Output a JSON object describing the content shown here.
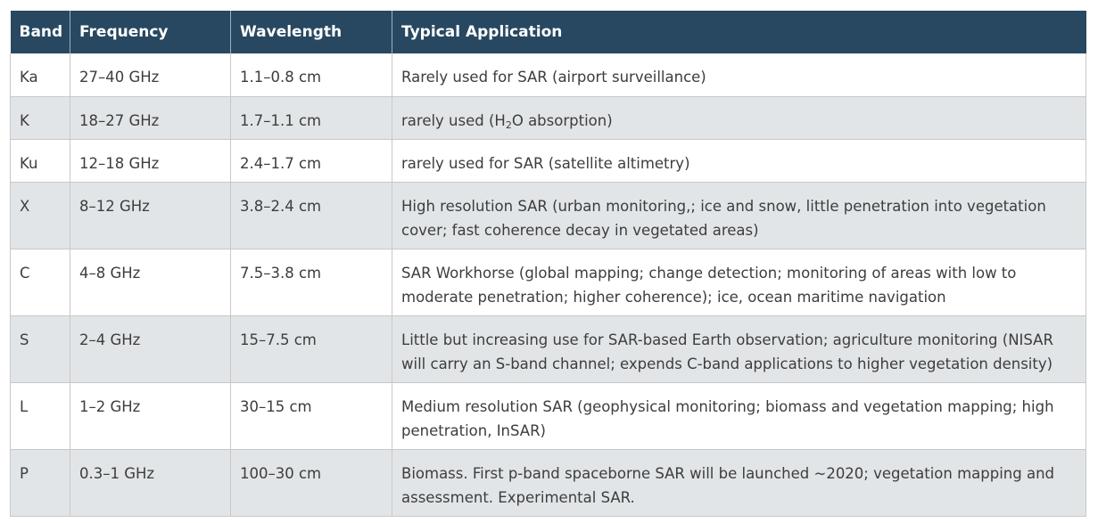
{
  "table": {
    "headers": [
      "Band",
      "Frequency",
      "Wavelength",
      "Typical Application"
    ],
    "rows": [
      {
        "band": "Ka",
        "frequency": "27–40 GHz",
        "wavelength": "1.1–0.8 cm",
        "application": "Rarely used for SAR (airport surveillance)"
      },
      {
        "band": "K",
        "frequency": "18–27 GHz",
        "wavelength": "1.7–1.1 cm",
        "application_pre": "rarely used (H",
        "application_sub": "2",
        "application_post": "O absorption)"
      },
      {
        "band": "Ku",
        "frequency": "12–18 GHz",
        "wavelength": "2.4–1.7 cm",
        "application": "rarely used for SAR (satellite altimetry)"
      },
      {
        "band": "X",
        "frequency": "8–12 GHz",
        "wavelength": "3.8–2.4 cm",
        "application": "High resolution SAR (urban monitoring,; ice and snow, little penetration into vegetation cover; fast coherence decay in vegetated areas)"
      },
      {
        "band": "C",
        "frequency": "4–8 GHz",
        "wavelength": "7.5–3.8 cm",
        "application": "SAR Workhorse (global mapping; change detection; monitoring of areas with low to moderate penetration; higher coherence); ice, ocean maritime navigation"
      },
      {
        "band": "S",
        "frequency": "2–4 GHz",
        "wavelength": "15–7.5 cm",
        "application": "Little but increasing use for SAR-based Earth observation; agriculture monitoring (NISAR will carry an S-band channel; expends C-band applications to higher vegetation density)"
      },
      {
        "band": "L",
        "frequency": "1–2 GHz",
        "wavelength": "30–15 cm",
        "application": "Medium resolution SAR (geophysical monitoring; biomass and vegetation mapping; high penetration, InSAR)"
      },
      {
        "band": "P",
        "frequency": "0.3–1 GHz",
        "wavelength": "100–30 cm",
        "application": "Biomass. First p-band spaceborne SAR will be launched ~2020; vegetation mapping and assessment. Experimental SAR."
      }
    ]
  }
}
